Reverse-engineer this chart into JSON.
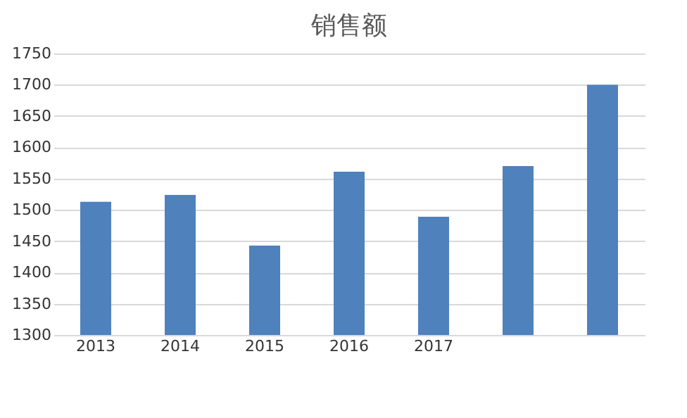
{
  "chart_data": {
    "type": "bar",
    "title": "销售额",
    "categories": [
      "2013",
      "2014",
      "2015",
      "2016",
      "2017",
      null,
      null
    ],
    "values": [
      1513,
      1524,
      1443,
      1561,
      1489,
      1570,
      1700
    ],
    "color": "#4f81bd",
    "ylim": [
      1300,
      1750
    ],
    "yticks": [
      1300,
      1350,
      1400,
      1450,
      1500,
      1550,
      1600,
      1650,
      1700,
      1750
    ],
    "grid": "y"
  }
}
